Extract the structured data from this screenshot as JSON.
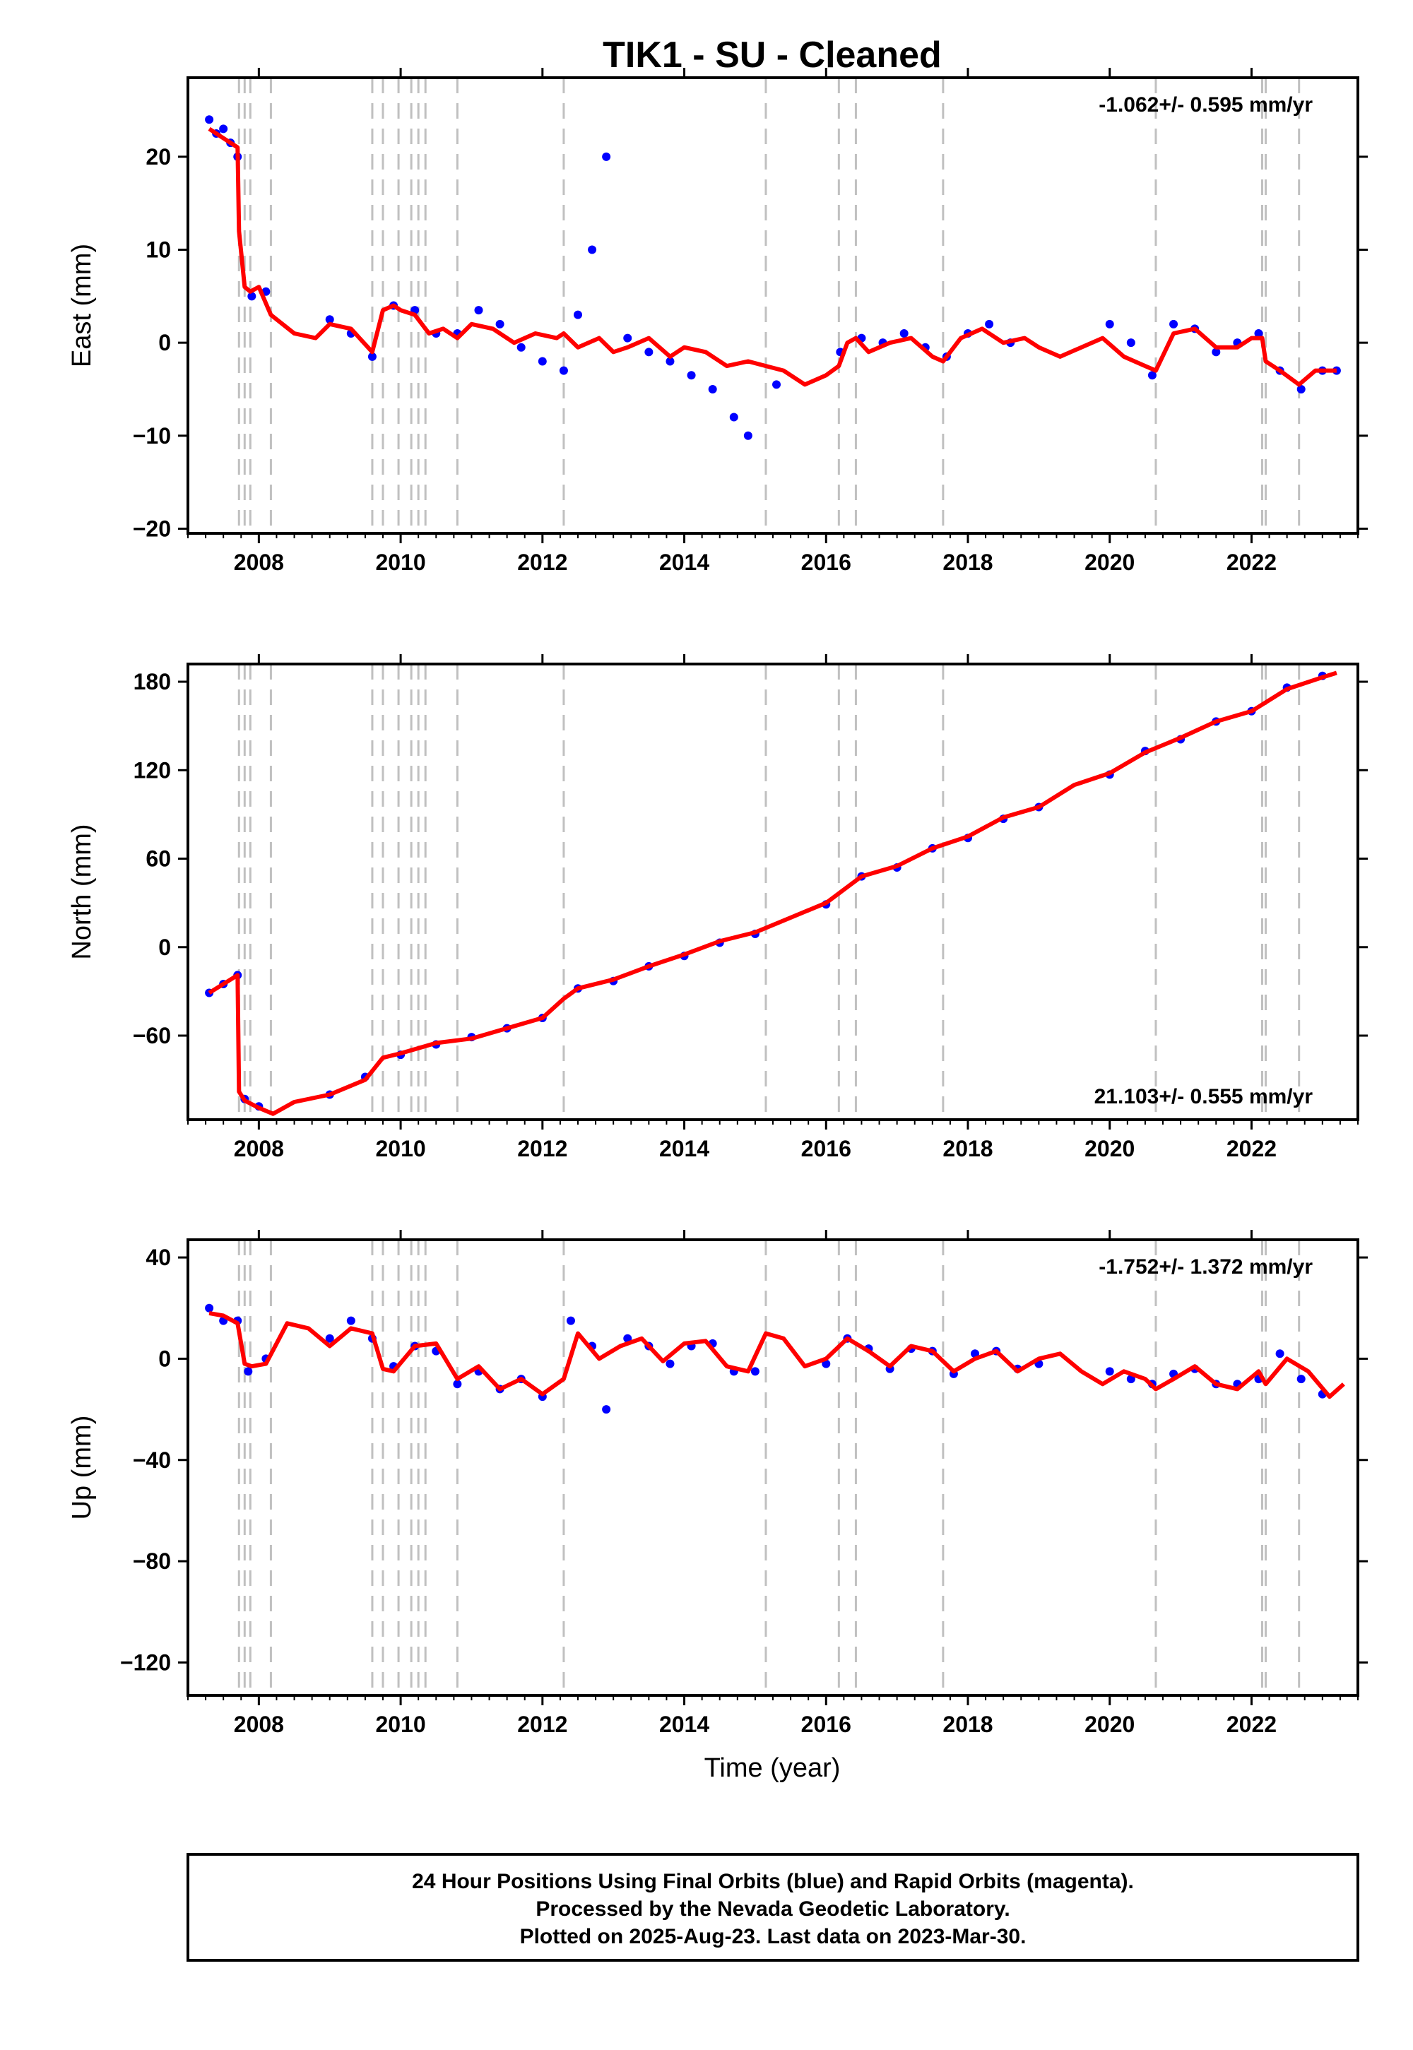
{
  "title": "TIK1  - SU - Cleaned",
  "colors": {
    "points": "#0000ff",
    "model": "#ff0000",
    "offsets": "#c0c0c0",
    "frame": "#000000"
  },
  "xlabel": "Time (year)",
  "footer": {
    "line1": "24 Hour Positions Using Final Orbits (blue) and Rapid Orbits (magenta).",
    "line2": "Processed by the Nevada Geodetic Laboratory.",
    "line3": "Plotted on 2025-Aug-23. Last data on 2023-Mar-30."
  },
  "chart_data": [
    {
      "type": "scatter",
      "ylabel": "East (mm)",
      "rate": "-1.062+/- 0.595 mm/yr",
      "xlim": [
        2007.0,
        2023.5
      ],
      "ylim": [
        -20.5,
        28.5
      ],
      "x_ticks": [
        2008,
        2010,
        2012,
        2014,
        2016,
        2018,
        2020,
        2022
      ],
      "x_tick_labels": [
        "2008",
        "2010",
        "2012",
        "2014",
        "2016",
        "2018",
        "2020",
        "2022"
      ],
      "y_ticks": [
        -20,
        -10,
        0,
        10,
        20
      ],
      "y_tick_labels": [
        "−20",
        "−10",
        "0",
        "10",
        "20"
      ],
      "offsets": [
        2007.72,
        2007.8,
        2007.88,
        2008.17,
        2009.6,
        2009.75,
        2009.97,
        2010.15,
        2010.25,
        2010.35,
        2010.8,
        2012.3,
        2015.15,
        2016.18,
        2016.42,
        2017.65,
        2020.65,
        2022.15,
        2022.2,
        2022.67
      ],
      "series": [
        {
          "kind": "model",
          "x": [
            2007.3,
            2007.5,
            2007.7,
            2007.72,
            2007.8,
            2007.88,
            2008.0,
            2008.17,
            2008.5,
            2008.8,
            2009.0,
            2009.3,
            2009.6,
            2009.75,
            2009.9,
            2010.0,
            2010.2,
            2010.4,
            2010.6,
            2010.8,
            2011.0,
            2011.3,
            2011.6,
            2011.9,
            2012.2,
            2012.3,
            2012.5,
            2012.8,
            2013.0,
            2013.2,
            2013.5,
            2013.8,
            2014.0,
            2014.3,
            2014.6,
            2014.9,
            2015.15,
            2015.4,
            2015.7,
            2016.0,
            2016.18,
            2016.3,
            2016.42,
            2016.6,
            2016.9,
            2017.2,
            2017.5,
            2017.65,
            2017.9,
            2018.2,
            2018.5,
            2018.8,
            2019.0,
            2019.3,
            2019.6,
            2019.9,
            2020.2,
            2020.5,
            2020.65,
            2020.9,
            2021.2,
            2021.5,
            2021.8,
            2022.0,
            2022.15,
            2022.2,
            2022.4,
            2022.67,
            2022.9,
            2023.2
          ],
          "y": [
            23.0,
            22.0,
            21.0,
            12.0,
            6.0,
            5.5,
            6.0,
            3.0,
            1.0,
            0.5,
            2.0,
            1.5,
            -1.0,
            3.5,
            4.0,
            3.5,
            3.0,
            1.0,
            1.5,
            0.5,
            2.0,
            1.5,
            0.0,
            1.0,
            0.5,
            1.0,
            -0.5,
            0.5,
            -1.0,
            -0.5,
            0.5,
            -1.5,
            -0.5,
            -1.0,
            -2.5,
            -2.0,
            -2.5,
            -3.0,
            -4.5,
            -3.5,
            -2.5,
            0.0,
            0.5,
            -1.0,
            0.0,
            0.5,
            -1.5,
            -2.0,
            0.5,
            1.5,
            0.0,
            0.5,
            -0.5,
            -1.5,
            -0.5,
            0.5,
            -1.5,
            -2.5,
            -3.0,
            1.0,
            1.5,
            -0.5,
            -0.5,
            0.5,
            0.5,
            -2.0,
            -3.0,
            -4.5,
            -3.0,
            -3.0
          ]
        },
        {
          "kind": "points",
          "x": [
            2007.3,
            2007.4,
            2007.5,
            2007.6,
            2007.7,
            2007.9,
            2008.1,
            2009.0,
            2009.3,
            2009.6,
            2009.9,
            2010.2,
            2010.5,
            2010.8,
            2011.1,
            2011.4,
            2011.7,
            2012.0,
            2012.3,
            2012.5,
            2012.7,
            2012.9,
            2013.2,
            2013.5,
            2013.8,
            2014.1,
            2014.4,
            2014.7,
            2014.9,
            2015.3,
            2016.2,
            2016.5,
            2016.8,
            2017.1,
            2017.4,
            2017.7,
            2018.0,
            2018.3,
            2018.6,
            2020.0,
            2020.3,
            2020.6,
            2020.9,
            2021.2,
            2021.5,
            2021.8,
            2022.1,
            2022.4,
            2022.7,
            2023.0,
            2023.2
          ],
          "y": [
            24.0,
            22.5,
            23.0,
            21.5,
            20.0,
            5.0,
            5.5,
            2.5,
            1.0,
            -1.5,
            4.0,
            3.5,
            1.0,
            1.0,
            3.5,
            2.0,
            -0.5,
            -2.0,
            -3.0,
            3.0,
            10.0,
            20.0,
            0.5,
            -1.0,
            -2.0,
            -3.5,
            -5.0,
            -8.0,
            -10.0,
            -4.5,
            -1.0,
            0.5,
            0.0,
            1.0,
            -0.5,
            -1.5,
            1.0,
            2.0,
            0.0,
            2.0,
            0.0,
            -3.5,
            2.0,
            1.5,
            -1.0,
            0.0,
            1.0,
            -3.0,
            -5.0,
            -3.0,
            -3.0
          ]
        }
      ]
    },
    {
      "type": "scatter",
      "ylabel": "North (mm)",
      "rate": "21.103+/- 0.555 mm/yr",
      "xlim": [
        2007.0,
        2023.5
      ],
      "ylim": [
        -117,
        192
      ],
      "x_ticks": [
        2008,
        2010,
        2012,
        2014,
        2016,
        2018,
        2020,
        2022
      ],
      "x_tick_labels": [
        "2008",
        "2010",
        "2012",
        "2014",
        "2016",
        "2018",
        "2020",
        "2022"
      ],
      "y_ticks": [
        -60,
        0,
        60,
        120,
        180
      ],
      "y_tick_labels": [
        "−60",
        "0",
        "60",
        "120",
        "180"
      ],
      "offsets": [
        2007.72,
        2007.8,
        2007.88,
        2008.17,
        2009.6,
        2009.75,
        2009.97,
        2010.15,
        2010.25,
        2010.35,
        2010.8,
        2012.3,
        2015.15,
        2016.18,
        2016.42,
        2017.65,
        2020.65,
        2022.15,
        2022.2,
        2022.67
      ],
      "series": [
        {
          "kind": "model",
          "x": [
            2007.3,
            2007.5,
            2007.7,
            2007.72,
            2007.8,
            2008.0,
            2008.2,
            2008.5,
            2009.0,
            2009.5,
            2009.75,
            2010.0,
            2010.5,
            2011.0,
            2011.5,
            2012.0,
            2012.3,
            2012.5,
            2013.0,
            2013.5,
            2014.0,
            2014.5,
            2015.0,
            2015.5,
            2016.0,
            2016.5,
            2017.0,
            2017.5,
            2018.0,
            2018.5,
            2019.0,
            2019.5,
            2020.0,
            2020.5,
            2021.0,
            2021.5,
            2022.0,
            2022.5,
            2023.0,
            2023.2
          ],
          "y": [
            -31,
            -25,
            -19,
            -98,
            -104,
            -109,
            -113,
            -105,
            -100,
            -90,
            -75,
            -72,
            -65,
            -62,
            -55,
            -48,
            -35,
            -28,
            -22,
            -13,
            -5,
            4,
            10,
            20,
            30,
            48,
            55,
            67,
            75,
            88,
            95,
            110,
            118,
            132,
            142,
            153,
            160,
            175,
            183,
            186
          ]
        },
        {
          "kind": "points",
          "x": [
            2007.3,
            2007.5,
            2007.7,
            2007.8,
            2008.0,
            2009.0,
            2009.5,
            2010.0,
            2010.5,
            2011.0,
            2011.5,
            2012.0,
            2012.5,
            2013.0,
            2013.5,
            2014.0,
            2014.5,
            2015.0,
            2016.0,
            2016.5,
            2017.0,
            2017.5,
            2018.0,
            2018.5,
            2019.0,
            2020.0,
            2020.5,
            2021.0,
            2021.5,
            2022.0,
            2022.5,
            2023.0
          ],
          "y": [
            -31,
            -25,
            -19,
            -103,
            -108,
            -100,
            -88,
            -73,
            -66,
            -61,
            -55,
            -48,
            -28,
            -23,
            -13,
            -6,
            3,
            9,
            29,
            48,
            54,
            67,
            74,
            87,
            95,
            117,
            133,
            141,
            153,
            160,
            176,
            184
          ]
        }
      ]
    },
    {
      "type": "scatter",
      "ylabel": "Up (mm)",
      "rate": "-1.752+/- 1.372 mm/yr",
      "xlim": [
        2007.0,
        2023.5
      ],
      "ylim": [
        -133,
        47
      ],
      "x_ticks": [
        2008,
        2010,
        2012,
        2014,
        2016,
        2018,
        2020,
        2022
      ],
      "x_tick_labels": [
        "2008",
        "2010",
        "2012",
        "2014",
        "2016",
        "2018",
        "2020",
        "2022"
      ],
      "y_ticks": [
        -120,
        -80,
        -40,
        0,
        40
      ],
      "y_tick_labels": [
        "−120",
        "−80",
        "−40",
        "0",
        "40"
      ],
      "offsets": [
        2007.72,
        2007.8,
        2007.88,
        2008.17,
        2009.6,
        2009.75,
        2009.97,
        2010.15,
        2010.25,
        2010.35,
        2010.8,
        2012.3,
        2015.15,
        2016.18,
        2016.42,
        2017.65,
        2020.65,
        2022.15,
        2022.2,
        2022.67
      ],
      "series": [
        {
          "kind": "model",
          "x": [
            2007.3,
            2007.5,
            2007.7,
            2007.8,
            2007.9,
            2008.1,
            2008.4,
            2008.7,
            2009.0,
            2009.3,
            2009.6,
            2009.75,
            2009.9,
            2010.2,
            2010.5,
            2010.8,
            2011.1,
            2011.4,
            2011.7,
            2012.0,
            2012.3,
            2012.5,
            2012.8,
            2013.1,
            2013.4,
            2013.7,
            2014.0,
            2014.3,
            2014.6,
            2014.9,
            2015.15,
            2015.4,
            2015.7,
            2016.0,
            2016.3,
            2016.6,
            2016.9,
            2017.2,
            2017.5,
            2017.8,
            2018.1,
            2018.4,
            2018.7,
            2019.0,
            2019.3,
            2019.6,
            2019.9,
            2020.2,
            2020.5,
            2020.65,
            2020.9,
            2021.2,
            2021.5,
            2021.8,
            2022.1,
            2022.2,
            2022.5,
            2022.8,
            2023.1,
            2023.3
          ],
          "y": [
            18,
            17,
            14,
            -2,
            -3,
            -2,
            14,
            12,
            5,
            12,
            10,
            -4,
            -5,
            5,
            6,
            -8,
            -3,
            -12,
            -8,
            -14,
            -8,
            10,
            0,
            5,
            8,
            -1,
            6,
            7,
            -3,
            -5,
            10,
            8,
            -3,
            0,
            8,
            3,
            -3,
            5,
            3,
            -5,
            0,
            3,
            -5,
            0,
            2,
            -5,
            -10,
            -5,
            -8,
            -12,
            -8,
            -3,
            -10,
            -12,
            -5,
            -10,
            0,
            -5,
            -15,
            -10
          ]
        },
        {
          "kind": "points",
          "x": [
            2007.3,
            2007.5,
            2007.7,
            2007.85,
            2008.1,
            2009.0,
            2009.3,
            2009.6,
            2009.9,
            2010.2,
            2010.5,
            2010.8,
            2011.1,
            2011.4,
            2011.7,
            2012.0,
            2012.4,
            2012.7,
            2012.9,
            2013.2,
            2013.5,
            2013.8,
            2014.1,
            2014.4,
            2014.7,
            2015.0,
            2016.0,
            2016.3,
            2016.6,
            2016.9,
            2017.2,
            2017.5,
            2017.8,
            2018.1,
            2018.4,
            2018.7,
            2019.0,
            2020.0,
            2020.3,
            2020.6,
            2020.9,
            2021.2,
            2021.5,
            2021.8,
            2022.1,
            2022.4,
            2022.7,
            2023.0
          ],
          "y": [
            20,
            15,
            15,
            -5,
            0,
            8,
            15,
            8,
            -3,
            5,
            3,
            -10,
            -5,
            -12,
            -8,
            -15,
            15,
            5,
            -20,
            8,
            5,
            -2,
            5,
            6,
            -5,
            -5,
            -2,
            8,
            4,
            -4,
            4,
            3,
            -6,
            2,
            3,
            -4,
            -2,
            -5,
            -8,
            -10,
            -6,
            -4,
            -10,
            -10,
            -8,
            2,
            -8,
            -14
          ]
        }
      ]
    }
  ]
}
